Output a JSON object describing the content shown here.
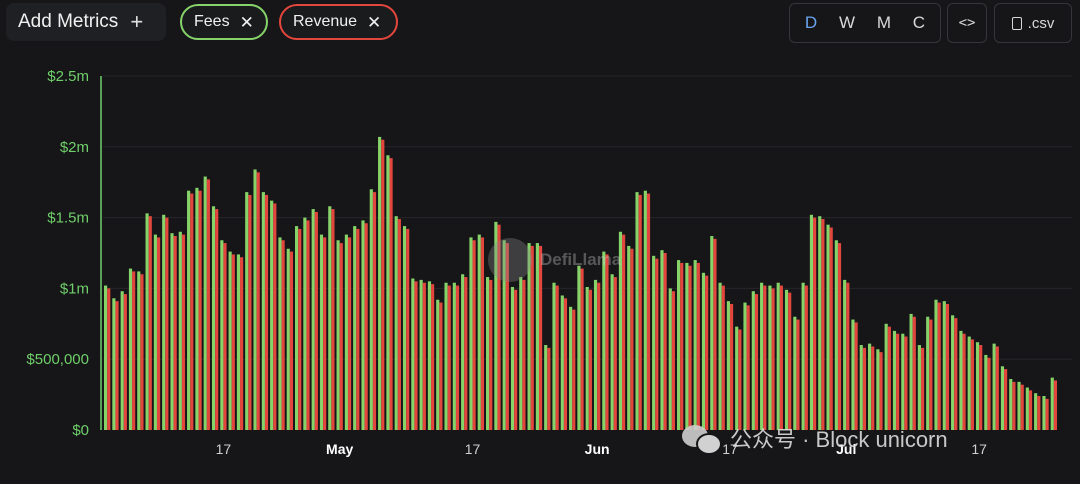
{
  "toolbar": {
    "add_metrics_label": "Add Metrics",
    "metrics": [
      {
        "label": "Fees",
        "color": "#86d36a"
      },
      {
        "label": "Revenue",
        "color": "#e2463c"
      }
    ],
    "intervals": [
      "D",
      "W",
      "M",
      "C"
    ],
    "active_interval": "D",
    "embed_label": "<>",
    "csv_label": ".csv"
  },
  "watermark": {
    "text": "DefiLlama"
  },
  "overlay_watermark": {
    "text": "公众号 · Block unicorn"
  },
  "chart_data": {
    "type": "bar",
    "title": "",
    "xlabel": "",
    "ylabel": "",
    "ylim": [
      0,
      2500000
    ],
    "yticks": [
      {
        "value": 0,
        "label": "$0"
      },
      {
        "value": 500000,
        "label": "$500,000"
      },
      {
        "value": 1000000,
        "label": "$1m"
      },
      {
        "value": 1500000,
        "label": "$1.5m"
      },
      {
        "value": 2000000,
        "label": "$2m"
      },
      {
        "value": 2500000,
        "label": "$2.5m"
      }
    ],
    "xticks": [
      {
        "index": 14,
        "label": "17",
        "major": false
      },
      {
        "index": 28,
        "label": "May",
        "major": true
      },
      {
        "index": 44,
        "label": "17",
        "major": false
      },
      {
        "index": 59,
        "label": "Jun",
        "major": true
      },
      {
        "index": 75,
        "label": "17",
        "major": false
      },
      {
        "index": 89,
        "label": "Jul",
        "major": true
      },
      {
        "index": 105,
        "label": "17",
        "major": false
      }
    ],
    "grid": true,
    "legend": "none",
    "series": [
      {
        "name": "Fees",
        "color": "#86d36a",
        "values": [
          1020000,
          930000,
          980000,
          1140000,
          1120000,
          1530000,
          1380000,
          1520000,
          1390000,
          1400000,
          1690000,
          1710000,
          1790000,
          1580000,
          1340000,
          1260000,
          1240000,
          1680000,
          1840000,
          1680000,
          1620000,
          1360000,
          1280000,
          1440000,
          1500000,
          1560000,
          1380000,
          1580000,
          1340000,
          1380000,
          1440000,
          1480000,
          1700000,
          2070000,
          1940000,
          1510000,
          1440000,
          1070000,
          1060000,
          1050000,
          920000,
          1040000,
          1040000,
          1100000,
          1360000,
          1380000,
          1080000,
          1470000,
          1340000,
          1010000,
          1080000,
          1320000,
          1320000,
          600000,
          1040000,
          950000,
          870000,
          1160000,
          1010000,
          1060000,
          1260000,
          1100000,
          1400000,
          1300000,
          1680000,
          1690000,
          1230000,
          1270000,
          1000000,
          1200000,
          1180000,
          1200000,
          1110000,
          1370000,
          1040000,
          910000,
          730000,
          900000,
          980000,
          1040000,
          1020000,
          1040000,
          990000,
          800000,
          1040000,
          1520000,
          1510000,
          1450000,
          1340000,
          1060000,
          780000,
          600000,
          610000,
          570000,
          750000,
          700000,
          680000,
          820000,
          600000,
          800000,
          920000,
          910000,
          810000,
          700000,
          660000,
          620000,
          530000,
          610000,
          450000,
          360000,
          340000,
          300000,
          260000,
          240000,
          370000
        ]
      },
      {
        "name": "Revenue",
        "color": "#e2463c",
        "values": [
          1000000,
          910000,
          960000,
          1120000,
          1100000,
          1510000,
          1360000,
          1500000,
          1370000,
          1380000,
          1670000,
          1690000,
          1770000,
          1560000,
          1320000,
          1240000,
          1220000,
          1660000,
          1820000,
          1660000,
          1600000,
          1340000,
          1260000,
          1420000,
          1480000,
          1540000,
          1360000,
          1560000,
          1320000,
          1360000,
          1420000,
          1460000,
          1680000,
          2050000,
          1920000,
          1490000,
          1420000,
          1050000,
          1040000,
          1030000,
          900000,
          1020000,
          1020000,
          1080000,
          1340000,
          1360000,
          1060000,
          1450000,
          1320000,
          990000,
          1060000,
          1300000,
          1300000,
          580000,
          1020000,
          930000,
          850000,
          1140000,
          990000,
          1040000,
          1240000,
          1080000,
          1380000,
          1280000,
          1660000,
          1670000,
          1210000,
          1250000,
          980000,
          1180000,
          1160000,
          1180000,
          1090000,
          1350000,
          1020000,
          890000,
          710000,
          880000,
          960000,
          1020000,
          1000000,
          1020000,
          970000,
          780000,
          1020000,
          1500000,
          1490000,
          1430000,
          1320000,
          1040000,
          760000,
          580000,
          590000,
          550000,
          730000,
          680000,
          660000,
          800000,
          580000,
          780000,
          900000,
          890000,
          790000,
          680000,
          640000,
          600000,
          510000,
          590000,
          430000,
          340000,
          320000,
          280000,
          240000,
          220000,
          350000
        ]
      }
    ]
  }
}
